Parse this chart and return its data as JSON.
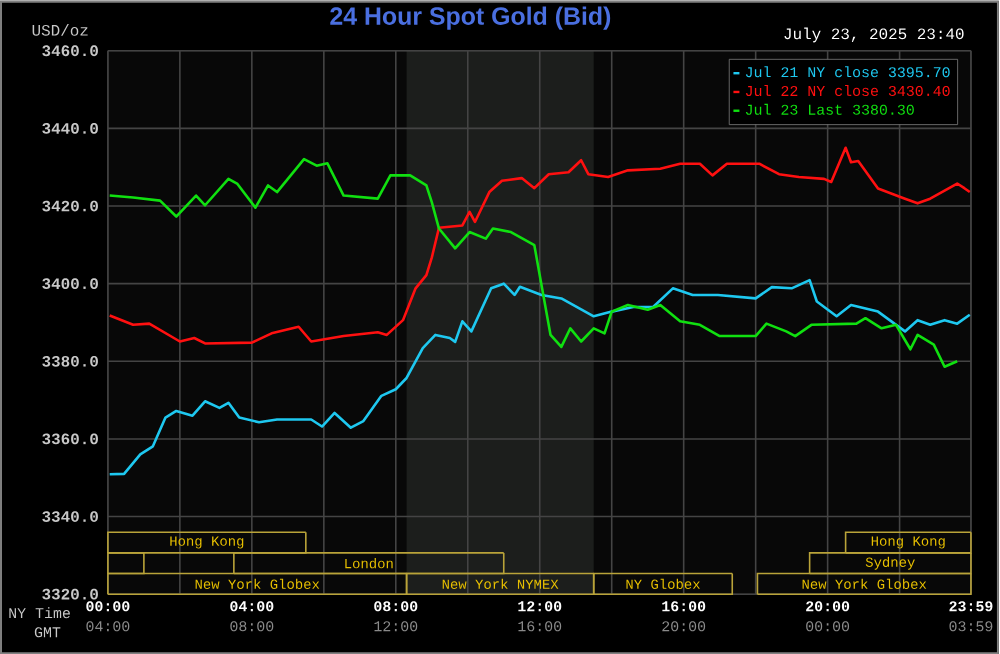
{
  "chart_data": {
    "type": "line",
    "title": "24 Hour Spot Gold (Bid)",
    "subtitle": "July 23, 2025 23:40",
    "ylabel": "USD/oz",
    "xlabel": "NY Time",
    "x2label": "GMT",
    "annotations": [
      "New York Globex",
      "New York NYMEX",
      "NY Globex",
      "New York Globex",
      "London",
      "Sydney",
      "Hong Kong",
      "Hong Kong"
    ],
    "xlim": [
      0,
      23.983
    ],
    "ylim": [
      3320,
      3460
    ],
    "xticks": [
      {
        "value": 0,
        "label": "00:00"
      },
      {
        "value": 2,
        "label": null
      },
      {
        "value": 4,
        "label": "04:00"
      },
      {
        "value": 6,
        "label": null
      },
      {
        "value": 8,
        "label": "08:00"
      },
      {
        "value": 10,
        "label": null
      },
      {
        "value": 12,
        "label": "12:00"
      },
      {
        "value": 14,
        "label": null
      },
      {
        "value": 16,
        "label": "16:00"
      },
      {
        "value": 18,
        "label": null
      },
      {
        "value": 20,
        "label": "20:00"
      },
      {
        "value": 22,
        "label": null
      },
      {
        "value": 23.983,
        "label": "23:59"
      }
    ],
    "x2lim": [
      "2025-07-23T04:00",
      "2025-07-24T03:59"
    ],
    "x2ticks": [
      {
        "value": "2025-07-23T04:00",
        "label": "04:00"
      },
      {
        "value": "2025-07-23T08:00",
        "label": "08:00"
      },
      {
        "value": "2025-07-23T12:00",
        "label": "12:00"
      },
      {
        "value": "2025-07-23T16:00",
        "label": "16:00"
      },
      {
        "value": "2025-07-23T20:00",
        "label": "20:00"
      },
      {
        "value": "2025-07-24T00:00",
        "label": "00:00"
      },
      {
        "value": "2025-07-24T03:59",
        "label": "03:59"
      }
    ],
    "yticks": [
      {
        "value": 3320,
        "label": "3320.0"
      },
      {
        "value": 3340,
        "label": "3340.0"
      },
      {
        "value": 3360,
        "label": "3360.0"
      },
      {
        "value": 3380,
        "label": "3380.0"
      },
      {
        "value": 3400,
        "label": "3400.0"
      },
      {
        "value": 3420,
        "label": "3420.0"
      },
      {
        "value": 3440,
        "label": "3440.0"
      },
      {
        "value": 3460,
        "label": "3460.0"
      }
    ],
    "grid": true,
    "legend": "top right",
    "marker": "none",
    "line_style": "solid",
    "bands": [
      {
        "axis": "x",
        "from": 8.3,
        "to": 13.5,
        "color": "#1c1e1c"
      }
    ],
    "series": [
      {
        "name": "Jul 21 NY close 3395.70",
        "color": "#1ec8f0",
        "x": [
          0.05,
          0.45,
          0.9,
          1.25,
          1.6,
          1.9,
          2.35,
          2.7,
          3.1,
          3.35,
          3.65,
          4.2,
          4.7,
          5.65,
          5.95,
          6.3,
          6.75,
          7.1,
          7.6,
          8.0,
          8.3,
          8.75,
          9.1,
          9.5,
          9.65,
          9.85,
          10.1,
          10.65,
          11.0,
          11.3,
          11.45,
          12.05,
          12.6,
          13.5,
          14.0,
          14.6,
          15.15,
          15.7,
          16.25,
          16.95,
          18.0,
          18.45,
          19.0,
          19.5,
          19.7,
          20.25,
          20.65,
          21.4,
          22.15,
          22.5,
          22.85,
          23.25,
          23.6,
          23.95
        ],
        "values": [
          3350.9,
          3351.0,
          3356.0,
          3358.1,
          3365.5,
          3367.2,
          3366.0,
          3369.7,
          3368.0,
          3369.3,
          3365.5,
          3364.3,
          3365.0,
          3365.0,
          3363.2,
          3366.7,
          3362.9,
          3364.6,
          3371.1,
          3372.8,
          3375.7,
          3383.4,
          3386.8,
          3386.0,
          3385.0,
          3390.3,
          3387.7,
          3398.8,
          3400.0,
          3397.1,
          3399.2,
          3397.1,
          3396.2,
          3391.6,
          3392.8,
          3394.0,
          3394.0,
          3398.8,
          3397.1,
          3397.1,
          3396.2,
          3399.1,
          3398.8,
          3400.9,
          3395.4,
          3391.6,
          3394.5,
          3392.8,
          3387.7,
          3390.6,
          3389.4,
          3390.6,
          3389.7,
          3392.0
        ]
      },
      {
        "name": "Jul 22 NY close 3430.40",
        "color": "#ff1010",
        "x": [
          0.05,
          0.7,
          1.15,
          2.0,
          2.4,
          2.7,
          4.0,
          4.55,
          5.3,
          5.65,
          6.55,
          7.5,
          7.75,
          8.2,
          8.55,
          8.85,
          9.0,
          9.2,
          9.85,
          10.05,
          10.2,
          10.6,
          10.95,
          11.5,
          11.85,
          12.25,
          12.8,
          13.15,
          13.35,
          13.9,
          14.45,
          15.35,
          15.9,
          16.45,
          16.8,
          17.2,
          18.1,
          18.65,
          19.2,
          19.9,
          20.1,
          20.5,
          20.65,
          20.85,
          21.4,
          22.15,
          22.5,
          22.85,
          23.6,
          23.8,
          23.95
        ],
        "values": [
          3391.8,
          3389.4,
          3389.7,
          3385.1,
          3386.0,
          3384.6,
          3384.8,
          3387.2,
          3388.9,
          3385.1,
          3386.5,
          3387.5,
          3386.8,
          3390.6,
          3398.8,
          3402.2,
          3406.7,
          3414.4,
          3415.0,
          3418.5,
          3415.9,
          3423.6,
          3426.5,
          3427.2,
          3424.6,
          3428.2,
          3428.7,
          3431.8,
          3428.2,
          3427.5,
          3429.2,
          3429.6,
          3430.9,
          3430.9,
          3427.9,
          3430.9,
          3430.9,
          3428.2,
          3427.5,
          3427.0,
          3426.2,
          3435.0,
          3431.3,
          3431.6,
          3424.5,
          3421.9,
          3420.7,
          3421.9,
          3425.8,
          3424.6,
          3423.6
        ]
      },
      {
        "name": "Jul 23 Last 3380.30",
        "color": "#10e010",
        "x": [
          0.05,
          0.7,
          1.45,
          1.9,
          2.45,
          2.7,
          3.35,
          3.6,
          4.1,
          4.45,
          4.7,
          5.45,
          5.8,
          6.1,
          6.55,
          7.5,
          7.85,
          8.4,
          8.85,
          9.0,
          9.2,
          9.65,
          10.05,
          10.5,
          10.7,
          11.2,
          11.85,
          12.05,
          12.3,
          12.6,
          12.85,
          13.15,
          13.5,
          13.8,
          14.0,
          14.45,
          15.0,
          15.35,
          15.9,
          16.45,
          17.0,
          18.0,
          18.3,
          18.85,
          19.1,
          19.55,
          20.8,
          21.05,
          21.5,
          21.9,
          22.3,
          22.5,
          22.95,
          23.25,
          23.6
        ],
        "values": [
          3422.7,
          3422.2,
          3421.4,
          3417.3,
          3422.7,
          3420.2,
          3427.0,
          3425.7,
          3419.6,
          3425.3,
          3423.6,
          3432.1,
          3430.4,
          3431.0,
          3422.7,
          3421.9,
          3427.9,
          3427.9,
          3425.3,
          3421.0,
          3414.2,
          3409.1,
          3413.3,
          3411.6,
          3414.2,
          3413.3,
          3409.9,
          3399.6,
          3386.8,
          3383.7,
          3388.5,
          3385.1,
          3388.5,
          3387.2,
          3392.8,
          3394.5,
          3393.3,
          3394.5,
          3390.3,
          3389.4,
          3386.5,
          3386.5,
          3389.7,
          3387.7,
          3386.5,
          3389.4,
          3389.7,
          3391.1,
          3388.5,
          3389.4,
          3383.1,
          3386.8,
          3384.3,
          3378.6,
          3380.0
        ]
      }
    ]
  }
}
